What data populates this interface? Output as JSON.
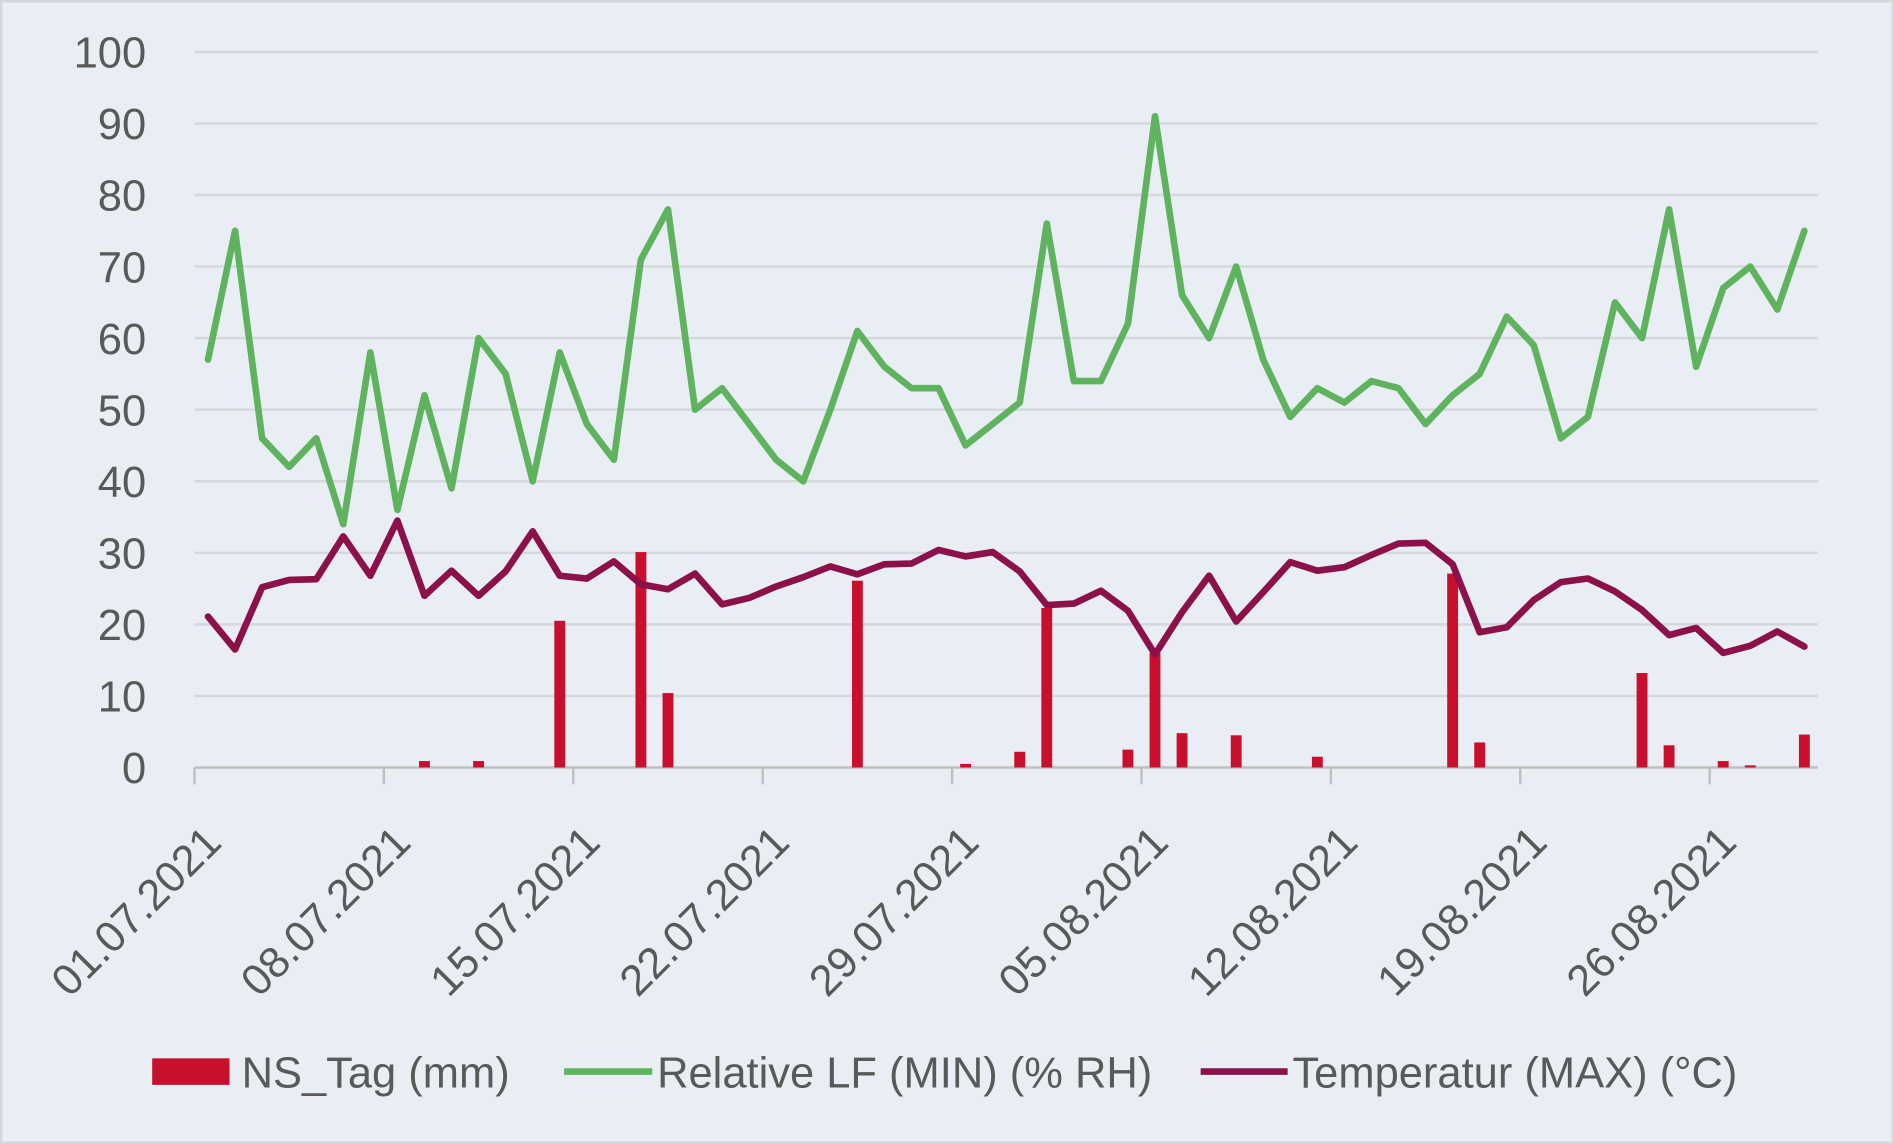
{
  "chart_data": {
    "type": "line",
    "grid": true,
    "legend_position": "bottom",
    "x_axis": {
      "tick_labels": [
        "01.07.2021",
        "08.07.2021",
        "15.07.2021",
        "22.07.2021",
        "29.07.2021",
        "05.08.2021",
        "12.08.2021",
        "19.08.2021",
        "26.08.2021"
      ],
      "tick_interval_days": 7
    },
    "y_axis": {
      "min": 0,
      "max": 100,
      "step": 10,
      "tick_labels": [
        "0",
        "10",
        "20",
        "30",
        "40",
        "50",
        "60",
        "70",
        "80",
        "90",
        "100"
      ]
    },
    "series": [
      {
        "name": "NS_Tag (mm)",
        "type": "bar",
        "color": "#c8102e",
        "values": [
          0,
          0,
          0,
          0,
          0,
          0,
          0,
          0,
          0.9,
          0,
          0.9,
          0,
          0,
          20.5,
          0,
          0,
          30.1,
          10.4,
          0,
          0,
          0,
          0,
          0,
          0,
          26.1,
          0,
          0,
          0,
          0.5,
          0,
          2.2,
          22.3,
          0,
          0,
          2.5,
          16.0,
          4.8,
          0,
          4.5,
          0,
          0,
          1.5,
          0,
          0,
          0,
          0,
          27.1,
          3.5,
          0,
          0,
          0,
          0,
          0,
          13.2,
          3.1,
          0,
          0.9,
          0.3,
          0,
          4.6
        ]
      },
      {
        "name": "Relative LF (MIN) (% RH)",
        "type": "line",
        "color": "#5fb35f",
        "values": [
          57,
          75,
          46,
          42,
          46,
          34,
          58,
          36,
          52,
          39,
          60,
          55,
          40,
          58,
          48,
          43,
          71,
          78,
          50,
          53,
          48,
          43,
          40,
          50,
          61,
          56,
          53,
          53,
          45,
          48,
          51,
          76,
          54,
          54,
          62,
          91,
          66,
          60,
          70,
          57,
          49,
          53,
          51,
          54,
          53,
          48,
          52,
          55,
          63,
          59,
          46,
          49,
          65,
          60,
          78,
          56,
          67,
          70,
          64,
          75
        ]
      },
      {
        "name": "Temperatur (MAX) (°C)",
        "type": "line",
        "color": "#8c1049",
        "values": [
          21.1,
          16.5,
          25.2,
          26.2,
          26.3,
          32.3,
          26.8,
          34.5,
          24.0,
          27.5,
          24.0,
          27.4,
          33.0,
          26.8,
          26.4,
          28.8,
          25.6,
          24.9,
          27.1,
          22.8,
          23.7,
          25.3,
          26.6,
          28.1,
          27.0,
          28.4,
          28.5,
          30.4,
          29.5,
          30.1,
          27.4,
          22.7,
          22.9,
          24.7,
          21.9,
          15.8,
          21.7,
          26.8,
          20.4,
          24.5,
          28.7,
          27.5,
          28.0,
          29.7,
          31.3,
          31.4,
          28.4,
          18.9,
          19.6,
          23.4,
          25.9,
          26.4,
          24.6,
          22.0,
          18.5,
          19.5,
          16.0,
          17.0,
          19.0,
          16.9
        ]
      }
    ]
  }
}
